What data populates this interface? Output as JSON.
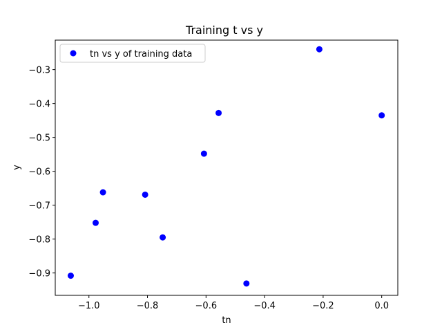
{
  "chart_data": {
    "type": "scatter",
    "title": "Training t vs y",
    "xlabel": "tn",
    "ylabel": "y",
    "xlim": [
      -1.115,
      0.055
    ],
    "ylim": [
      -0.966,
      -0.213
    ],
    "xticks": [
      -1.0,
      -0.8,
      -0.6,
      -0.4,
      -0.2,
      0.0
    ],
    "xtick_labels": [
      "−1.0",
      "−0.8",
      "−0.6",
      "−0.4",
      "−0.2",
      "0.0"
    ],
    "yticks": [
      -0.3,
      -0.4,
      -0.5,
      -0.6,
      -0.7,
      -0.8,
      -0.9
    ],
    "ytick_labels": [
      "−0.3",
      "−0.4",
      "−0.5",
      "−0.6",
      "−0.7",
      "−0.8",
      "−0.9"
    ],
    "grid": false,
    "legend_position": "top-left",
    "series": [
      {
        "name": "tn vs y of training data",
        "color": "#0000ff",
        "marker": "circle",
        "points": [
          {
            "x": -1.062,
            "y": -0.908
          },
          {
            "x": -0.977,
            "y": -0.752
          },
          {
            "x": -0.952,
            "y": -0.662
          },
          {
            "x": -0.808,
            "y": -0.669
          },
          {
            "x": -0.748,
            "y": -0.795
          },
          {
            "x": -0.607,
            "y": -0.548
          },
          {
            "x": -0.557,
            "y": -0.428
          },
          {
            "x": -0.462,
            "y": -0.931
          },
          {
            "x": -0.213,
            "y": -0.24
          },
          {
            "x": 0.0,
            "y": -0.435
          }
        ]
      }
    ]
  }
}
